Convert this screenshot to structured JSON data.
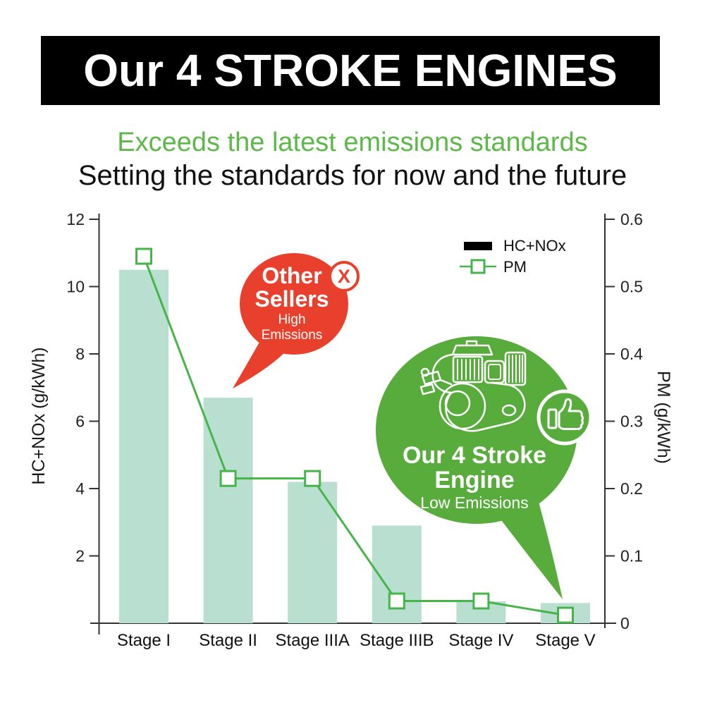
{
  "header": {
    "title": "Our 4 STROKE ENGINES",
    "subtitle_green": "Exceeds the latest emissions standards",
    "subtitle_black": "Setting the standards for now and the future"
  },
  "colors": {
    "banner_bg": "#000000",
    "banner_text": "#ffffff",
    "subtitle_green": "#5cb848",
    "bar_fill": "#b9dfd1",
    "line_green": "#46b549",
    "bubble_green": "#57ac3c",
    "bubble_red": "#e8402d",
    "axis": "#333333",
    "tick_text": "#222222"
  },
  "chart_data": {
    "type": "bar",
    "subtype": "dual-axis bar+line",
    "categories": [
      "Stage I",
      "Stage II",
      "Stage IIIA",
      "Stage IIIB",
      "Stage IV",
      "Stage V"
    ],
    "series": [
      {
        "name": "HC+NOx",
        "type": "bar",
        "axis": "left",
        "color": "#b9dfd1",
        "values": [
          10.5,
          6.7,
          4.2,
          2.9,
          0.65,
          0.6
        ]
      },
      {
        "name": "PM",
        "type": "line",
        "axis": "right",
        "color": "#46b549",
        "marker": "open-square",
        "values": [
          0.545,
          0.215,
          0.215,
          0.033,
          0.033,
          0.012
        ]
      }
    ],
    "left_axis": {
      "label": "HC+NOx (g/kWh)",
      "range": [
        0,
        12
      ],
      "ticks": [
        "12",
        "10",
        "8",
        "6",
        "4",
        "2"
      ]
    },
    "right_axis": {
      "label": "PM (g/kWh)",
      "range": [
        0,
        0.6
      ],
      "ticks": [
        "0.6",
        "0.5",
        "0.4",
        "0.3",
        "0.2",
        "0.1",
        "0"
      ]
    },
    "legend": {
      "position": "top-right",
      "entries": [
        "HC+NOx",
        "PM"
      ]
    },
    "grid": "off"
  },
  "annotations": {
    "red_bubble": {
      "title1": "Other",
      "title2": "Sellers",
      "sub1": "High",
      "sub2": "Emissions",
      "badge": "X"
    },
    "green_bubble": {
      "title1": "Our 4 Stroke",
      "title2": "Engine",
      "sub": "Low Emissions"
    }
  }
}
